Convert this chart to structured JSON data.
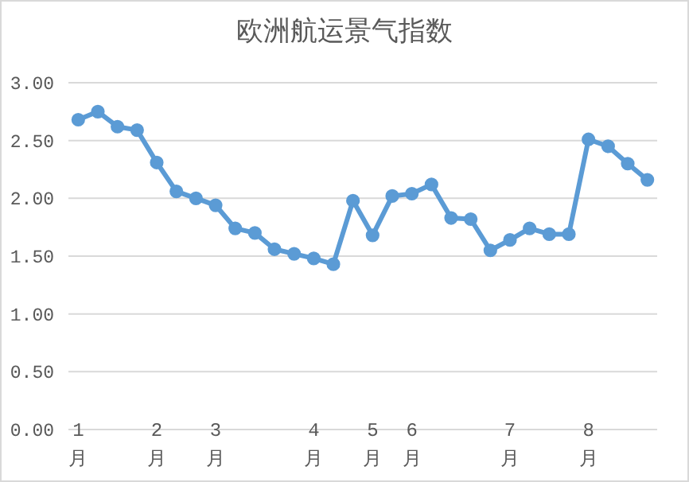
{
  "chart_data": {
    "type": "line",
    "title": "欧洲航运景气指数",
    "categories": [
      "1月",
      null,
      null,
      null,
      "2月",
      null,
      null,
      "3月",
      null,
      null,
      null,
      null,
      "4月",
      null,
      null,
      "5月",
      null,
      "6月",
      null,
      null,
      null,
      null,
      "7月",
      null,
      null,
      null,
      "8月",
      null,
      null,
      null
    ],
    "series": [
      {
        "color": "#5b9bd5",
        "values": [
          2.68,
          2.75,
          2.62,
          2.59,
          2.31,
          2.06,
          2.0,
          1.94,
          1.74,
          1.7,
          1.56,
          1.52,
          1.48,
          1.43,
          1.98,
          1.68,
          2.02,
          2.04,
          2.12,
          1.83,
          1.82,
          1.55,
          1.64,
          1.74,
          1.69,
          1.69,
          2.51,
          2.45,
          2.3,
          2.16
        ]
      }
    ],
    "ylim": [
      0,
      3
    ],
    "yticks": [
      {
        "value": 0,
        "label": "0.00"
      },
      {
        "value": 0.5,
        "label": "0.50"
      },
      {
        "value": 1,
        "label": "1.00"
      },
      {
        "value": 1.5,
        "label": "1.50"
      },
      {
        "value": 2,
        "label": "2.00"
      },
      {
        "value": 2.5,
        "label": "2.50"
      },
      {
        "value": 3,
        "label": "3.00"
      }
    ],
    "grid": "y",
    "marker": "circle",
    "line_style": "solid"
  }
}
